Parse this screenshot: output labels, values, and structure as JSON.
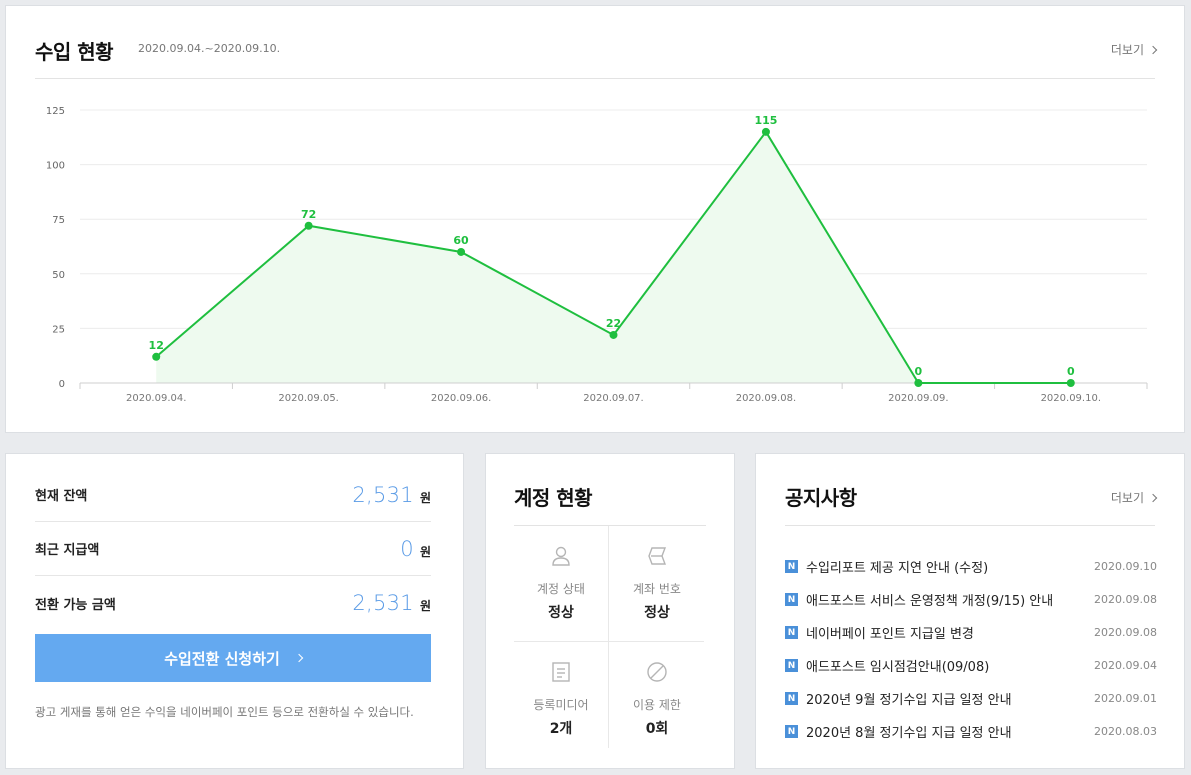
{
  "income": {
    "title": "수입 현황",
    "period": "2020.09.04.~2020.09.10.",
    "more": "더보기"
  },
  "chart_data": {
    "type": "area",
    "x": [
      "2020.09.04.",
      "2020.09.05.",
      "2020.09.06.",
      "2020.09.07.",
      "2020.09.08.",
      "2020.09.09.",
      "2020.09.10."
    ],
    "values": [
      12,
      72,
      60,
      22,
      115,
      0,
      0
    ],
    "yticks": [
      0,
      25,
      50,
      75,
      100,
      125
    ],
    "ylim": [
      0,
      125
    ],
    "grid": true,
    "data_labels": true,
    "color": "#1fbf3f",
    "fill_color": "#eefaef"
  },
  "balance": {
    "rows": [
      {
        "label": "현재 잔액",
        "value": "2,531",
        "unit": "원"
      },
      {
        "label": "최근 지급액",
        "value": "0",
        "unit": "원"
      },
      {
        "label": "전환 가능 금액",
        "value": "2,531",
        "unit": "원"
      }
    ],
    "button_label": "수입전환 신청하기",
    "note": "광고 게재를 통해 얻은 수익을 네이버페이 포인트 등으로 전환하실 수 있습니다."
  },
  "account": {
    "title": "계정 현황",
    "items": [
      {
        "icon": "person-icon",
        "label": "계정 상태",
        "value": "정상"
      },
      {
        "icon": "card-icon",
        "label": "계좌 번호",
        "value": "정상"
      },
      {
        "icon": "document-icon",
        "label": "등록미디어",
        "value": "2개"
      },
      {
        "icon": "prohibited-icon",
        "label": "이용 제한",
        "value": "0회"
      }
    ]
  },
  "notice": {
    "title": "공지사항",
    "more": "더보기",
    "badge": "N",
    "items": [
      {
        "title": "수입리포트 제공 지연 안내 (수정)",
        "date": "2020.09.10"
      },
      {
        "title": "애드포스트 서비스 운영정책 개정(9/15) 안내",
        "date": "2020.09.08"
      },
      {
        "title": "네이버페이 포인트 지급일 변경",
        "date": "2020.09.08"
      },
      {
        "title": "애드포스트 임시점검안내(09/08)",
        "date": "2020.09.04"
      },
      {
        "title": "2020년 9월 정기수입 지급 일정 안내",
        "date": "2020.09.01"
      },
      {
        "title": "2020년 8월 정기수입 지급 일정 안내",
        "date": "2020.08.03"
      }
    ]
  }
}
